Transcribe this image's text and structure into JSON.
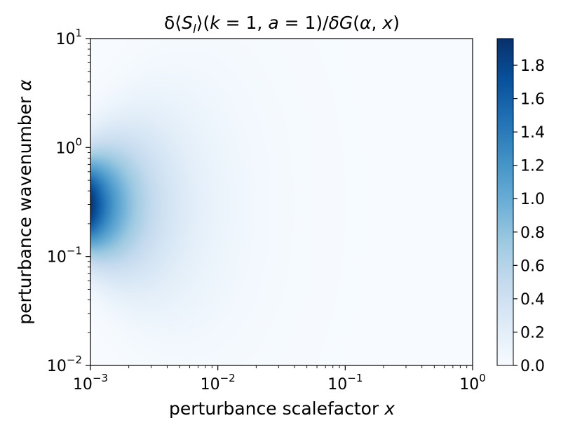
{
  "chart_data": {
    "type": "heatmap",
    "title": "δ⟨S_l⟩(k = 1, a = 1)/δG(α, x)",
    "title_parts": {
      "pre1": "δ⟨",
      "S": "S",
      "sub": "l",
      "pre2": "⟩(",
      "k": "k",
      "eq1": " = 1, ",
      "a": "a",
      "eq2": " = 1)/",
      "delta": "δ",
      "G": "G",
      "open": "(",
      "alpha": "α",
      "comma": ", ",
      "x": "x",
      "close": ")"
    },
    "xlabel": {
      "text": "perturbance scalefactor ",
      "var": "x"
    },
    "ylabel": {
      "text": "perturbance wavenumber ",
      "var": "α"
    },
    "x_scale": "log",
    "y_scale": "log",
    "xlim": [
      0.001,
      1
    ],
    "ylim": [
      0.01,
      10
    ],
    "x_ticks": [
      {
        "value": 0.001,
        "base": "10",
        "exp": "−3"
      },
      {
        "value": 0.01,
        "base": "10",
        "exp": "−2"
      },
      {
        "value": 0.1,
        "base": "10",
        "exp": "−1"
      },
      {
        "value": 1,
        "base": "10",
        "exp": "0"
      }
    ],
    "y_ticks": [
      {
        "value": 0.01,
        "base": "10",
        "exp": "−2"
      },
      {
        "value": 0.1,
        "base": "10",
        "exp": "−1"
      },
      {
        "value": 1,
        "base": "10",
        "exp": "0"
      },
      {
        "value": 10,
        "base": "10",
        "exp": "1"
      }
    ],
    "colormap": "Blues",
    "colorbar": {
      "min": 0.0,
      "max": 1.96,
      "ticks": [
        "0.0",
        "0.2",
        "0.4",
        "0.6",
        "0.8",
        "1.0",
        "1.2",
        "1.4",
        "1.6",
        "1.8"
      ]
    },
    "field": {
      "peak_value": 1.96,
      "peak_x": 0.001,
      "peak_y": 0.3
    },
    "grid": false
  }
}
